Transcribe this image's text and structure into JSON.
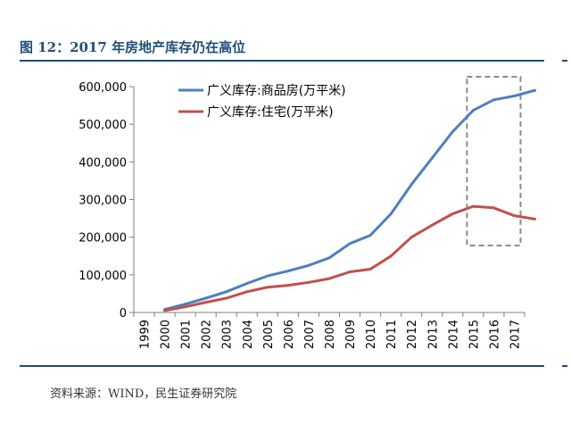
{
  "figure": {
    "caption": "图 12：2017 年房地产库存仍在高位",
    "source": "资料来源：WIND，民生证券研究院"
  },
  "colors": {
    "series_commercial": "#4f7fbf",
    "series_residential": "#c0504d",
    "axis": "#808080",
    "highlight_box": "#8c8c8c",
    "accent": "#1f4e79"
  },
  "chart_data": {
    "type": "line",
    "title": "",
    "xlabel": "",
    "ylabel": "",
    "ylim": [
      0,
      600000
    ],
    "yticks": [
      0,
      100000,
      200000,
      300000,
      400000,
      500000,
      600000
    ],
    "ytick_labels": [
      "0",
      "100,000",
      "200,000",
      "300,000",
      "400,000",
      "500,000",
      "600,000"
    ],
    "categories": [
      "1999",
      "2000",
      "2001",
      "2002",
      "2003",
      "2004",
      "2005",
      "2006",
      "2007",
      "2008",
      "2009",
      "2010",
      "2011",
      "2012",
      "2013",
      "2014",
      "2015",
      "2016",
      "2017"
    ],
    "x_start_index": 1,
    "grid": false,
    "legend_position": "top-center",
    "highlight_range": [
      "2015",
      "2017"
    ],
    "series": [
      {
        "name": "广义库存:商品房(万平米)",
        "values": [
          8000,
          22000,
          38000,
          55000,
          77000,
          97000,
          110000,
          125000,
          145000,
          183000,
          205000,
          262000,
          340000,
          410000,
          480000,
          537000,
          565000,
          575000,
          590000
        ]
      },
      {
        "name": "广义库存:住宅(万平米)",
        "values": [
          5000,
          15000,
          27000,
          38000,
          55000,
          67000,
          72000,
          80000,
          90000,
          108000,
          115000,
          150000,
          200000,
          232000,
          262000,
          282000,
          278000,
          257000,
          248000
        ]
      }
    ]
  }
}
